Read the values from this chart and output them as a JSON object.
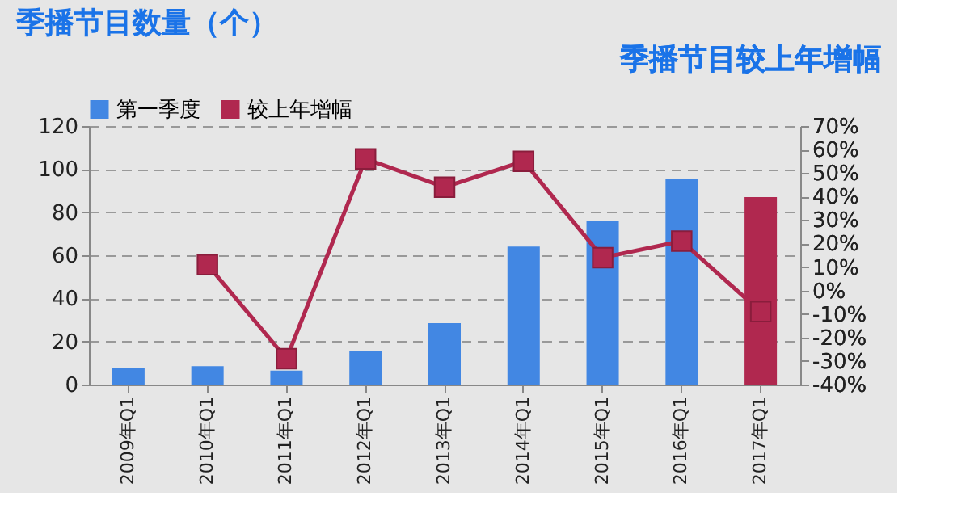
{
  "chart_data": {
    "type": "bar",
    "title": "季播节目数量（个）",
    "y2label": "季播节目较上年增幅",
    "categories": [
      "2009年Q1",
      "2010年Q1",
      "2011年Q1",
      "2012年Q1",
      "2013年Q1",
      "2014年Q1",
      "2015年Q1",
      "2016年Q1",
      "2017年Q1"
    ],
    "series": [
      {
        "name": "第一季度",
        "color": "#4287e3",
        "colors": [
          "#4287e3",
          "#4287e3",
          "#4287e3",
          "#4287e3",
          "#4287e3",
          "#4287e3",
          "#4287e3",
          "#4287e3",
          "#b0284f"
        ],
        "values": [
          7.5,
          8.5,
          6.5,
          15.5,
          28.5,
          64,
          76,
          95.5,
          87
        ]
      },
      {
        "name": "较上年增幅",
        "type": "line",
        "axis": "y2",
        "color": "#b0284f",
        "marker": "square",
        "values": [
          null,
          11,
          -29,
          56,
          44,
          55,
          14,
          21,
          -9
        ]
      }
    ],
    "ylim": [
      0,
      120
    ],
    "yticks": [
      0,
      20,
      40,
      60,
      80,
      100,
      120
    ],
    "y2lim": [
      -40,
      70
    ],
    "y2ticks": [
      {
        "value": -40,
        "label": "-40%"
      },
      {
        "value": -30,
        "label": "-30%"
      },
      {
        "value": -20,
        "label": "-20%"
      },
      {
        "value": -10,
        "label": "-10%"
      },
      {
        "value": 0,
        "label": "0%"
      },
      {
        "value": 10,
        "label": "10%"
      },
      {
        "value": 20,
        "label": "20%"
      },
      {
        "value": 30,
        "label": "30%"
      },
      {
        "value": 40,
        "label": "40%"
      },
      {
        "value": 50,
        "label": "50%"
      },
      {
        "value": 60,
        "label": "60%"
      },
      {
        "value": 70,
        "label": "70%"
      }
    ],
    "grid": "y",
    "legend": "top"
  }
}
